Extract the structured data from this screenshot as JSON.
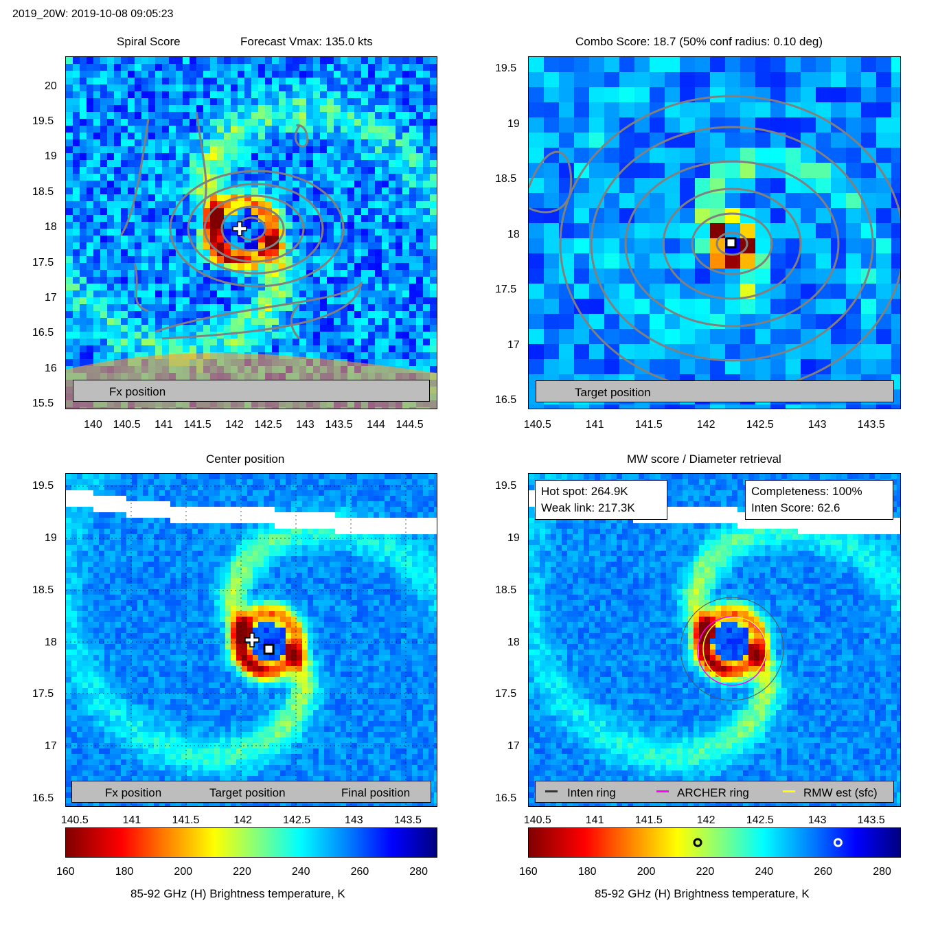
{
  "header": {
    "title": "2019_20W: 2019-10-08 09:05:23"
  },
  "colors": {
    "contour": "#808080",
    "fx_marker": "#ffffff",
    "target_marker": "#000000",
    "final_marker": "#cc00cc",
    "inten_ring": "#333333",
    "archer_ring": "#ff00ff",
    "rmw_ring": "#ffff00",
    "legend_bg": "#bdbdbd"
  },
  "panels": {
    "spiral": {
      "title_left": "Spiral Score",
      "title_right": "Forecast Vmax: 135.0 kts",
      "legend": {
        "fx": "Fx position"
      },
      "xticks": [
        "140",
        "140.5",
        "141",
        "141.5",
        "142",
        "142.5",
        "143",
        "143.5",
        "144",
        "144.5"
      ],
      "yticks": [
        "20",
        "19.5",
        "19",
        "18.5",
        "18",
        "17.5",
        "17",
        "16.5",
        "16",
        "15.5"
      ]
    },
    "combo": {
      "title": "Combo Score: 18.7  (50% conf radius: 0.10 deg)",
      "legend": {
        "target": "Target position"
      },
      "xticks": [
        "140.5",
        "141",
        "141.5",
        "142",
        "142.5",
        "143",
        "143.5"
      ],
      "yticks": [
        "19.5",
        "19",
        "18.5",
        "18",
        "17.5",
        "17",
        "16.5"
      ]
    },
    "center": {
      "title": "Center position",
      "legend": {
        "fx": "Fx position",
        "target": "Target position",
        "final": "Final position"
      },
      "xticks": [
        "140.5",
        "141",
        "141.5",
        "142",
        "142.5",
        "143",
        "143.5"
      ],
      "yticks": [
        "19.5",
        "19",
        "18.5",
        "18",
        "17.5",
        "17",
        "16.5"
      ]
    },
    "mw": {
      "title": "MW score / Diameter retrieval",
      "hot_spot": "Hot spot: 264.9K",
      "weak_link": "Weak link: 217.3K",
      "completeness": "Completeness: 100%",
      "inten_score": "Inten Score: 62.6",
      "legend": {
        "inten": "Inten ring",
        "archer": "ARCHER ring",
        "rmw": "RMW est (sfc)"
      },
      "xticks": [
        "140.5",
        "141",
        "141.5",
        "142",
        "142.5",
        "143",
        "143.5"
      ],
      "yticks": [
        "19.5",
        "19",
        "18.5",
        "18",
        "17.5",
        "17",
        "16.5"
      ]
    }
  },
  "colorbar": {
    "ticks": [
      "160",
      "180",
      "200",
      "220",
      "240",
      "260",
      "280"
    ],
    "label": "85-92 GHz (H) Brightness temperature, K",
    "range": [
      160,
      286
    ],
    "weak_link_k": 217.3,
    "hot_spot_k": 264.9
  },
  "chart_data": [
    {
      "type": "heatmap",
      "title": "Spiral Score",
      "subtitle": "Forecast Vmax: 135.0 kts",
      "xlim": [
        139.6,
        144.9
      ],
      "ylim": [
        15.45,
        20.5
      ],
      "fx_position": [
        142.05,
        18.0
      ],
      "legend": [
        "Fx position"
      ]
    },
    {
      "type": "heatmap",
      "title": "Combo Score: 18.7  (50% conf radius: 0.10 deg)",
      "xlim": [
        140.4,
        143.8
      ],
      "ylim": [
        16.45,
        19.6
      ],
      "target_position": [
        142.25,
        17.92
      ],
      "legend": [
        "Target position"
      ]
    },
    {
      "type": "heatmap",
      "title": "Center position",
      "xlim": [
        140.4,
        143.8
      ],
      "ylim": [
        16.45,
        19.6
      ],
      "fx_position": [
        142.1,
        18.01
      ],
      "target_position": [
        142.25,
        17.93
      ],
      "legend": [
        "Fx position",
        "Target position",
        "Final position"
      ]
    },
    {
      "type": "heatmap",
      "title": "MW score / Diameter retrieval",
      "xlim": [
        140.4,
        143.8
      ],
      "ylim": [
        16.45,
        19.6
      ],
      "hot_spot_k": 264.9,
      "weak_link_k": 217.3,
      "completeness_pct": 100,
      "inten_score": 62.6,
      "legend": [
        "Inten ring",
        "ARCHER ring",
        "RMW est (sfc)"
      ]
    }
  ]
}
